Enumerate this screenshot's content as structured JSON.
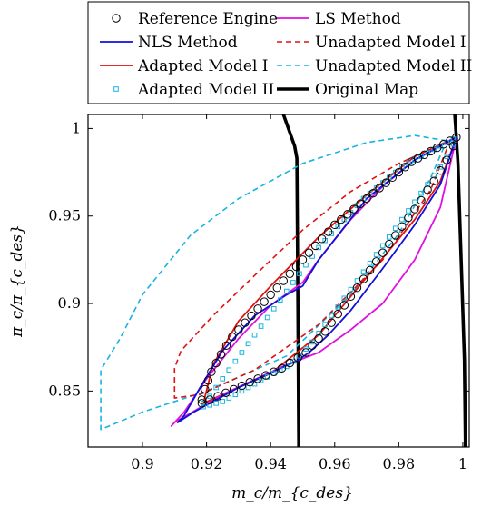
{
  "chart_data": {
    "type": "line",
    "xlabel": "m_c/m_{c_des}",
    "ylabel": "π_c/π_{c_des}",
    "xlim": [
      0.883,
      1.002
    ],
    "ylim": [
      0.818,
      1.008
    ],
    "xticks": [
      "0.9",
      "0.92",
      "0.94",
      "0.96",
      "0.98",
      "1"
    ],
    "yticks": [
      "0.85",
      "0.9",
      "0.95",
      "1"
    ],
    "grid": false,
    "legend_position": "top (above plot)",
    "series": [
      {
        "name": "Reference Engine",
        "style": "markers-circle",
        "color": "#000000",
        "x": [
          0.9185,
          0.9195,
          0.9205,
          0.9215,
          0.923,
          0.9245,
          0.9262,
          0.928,
          0.93,
          0.932,
          0.934,
          0.936,
          0.938,
          0.94,
          0.942,
          0.944,
          0.946,
          0.948,
          0.95,
          0.952,
          0.954,
          0.956,
          0.958,
          0.96,
          0.962,
          0.964,
          0.966,
          0.968,
          0.97,
          0.972,
          0.974,
          0.976,
          0.978,
          0.98,
          0.982,
          0.984,
          0.986,
          0.988,
          0.99,
          0.992,
          0.994,
          0.996,
          0.998,
          0.9185,
          0.921,
          0.9235,
          0.926,
          0.9285,
          0.931,
          0.9335,
          0.936,
          0.9385,
          0.941,
          0.9435,
          0.946,
          0.9485,
          0.951,
          0.953,
          0.955,
          0.957,
          0.959,
          0.961,
          0.963,
          0.965,
          0.967,
          0.969,
          0.971,
          0.973,
          0.975,
          0.977,
          0.979,
          0.981,
          0.983,
          0.985,
          0.987,
          0.989,
          0.991,
          0.993,
          0.995,
          0.997
        ],
        "y": [
          0.845,
          0.851,
          0.856,
          0.861,
          0.866,
          0.871,
          0.876,
          0.881,
          0.885,
          0.889,
          0.893,
          0.897,
          0.901,
          0.905,
          0.909,
          0.913,
          0.917,
          0.921,
          0.925,
          0.929,
          0.933,
          0.937,
          0.941,
          0.945,
          0.948,
          0.951,
          0.954,
          0.957,
          0.96,
          0.963,
          0.966,
          0.969,
          0.972,
          0.975,
          0.978,
          0.981,
          0.983,
          0.985,
          0.987,
          0.989,
          0.991,
          0.993,
          0.995,
          0.843,
          0.845,
          0.847,
          0.849,
          0.851,
          0.853,
          0.855,
          0.857,
          0.859,
          0.861,
          0.863,
          0.866,
          0.869,
          0.872,
          0.876,
          0.88,
          0.884,
          0.889,
          0.894,
          0.899,
          0.904,
          0.909,
          0.914,
          0.919,
          0.924,
          0.929,
          0.934,
          0.939,
          0.944,
          0.949,
          0.954,
          0.959,
          0.965,
          0.97,
          0.976,
          0.982,
          0.99
        ]
      },
      {
        "name": "NLS Method",
        "style": "solid",
        "color": "#1010d8",
        "x": [
          0.998,
          0.985,
          0.97,
          0.955,
          0.95,
          0.945,
          0.935,
          0.925,
          0.918,
          0.913,
          0.911,
          0.916,
          0.93,
          0.948,
          0.952,
          0.958,
          0.965,
          0.975,
          0.985,
          0.993,
          0.998
        ],
        "y": [
          0.995,
          0.982,
          0.96,
          0.925,
          0.91,
          0.905,
          0.893,
          0.873,
          0.852,
          0.836,
          0.832,
          0.838,
          0.852,
          0.867,
          0.872,
          0.882,
          0.896,
          0.92,
          0.945,
          0.968,
          0.995
        ]
      },
      {
        "name": "Adapted Model I",
        "style": "solid",
        "color": "#e01010",
        "x": [
          0.998,
          0.985,
          0.97,
          0.955,
          0.94,
          0.93,
          0.922,
          0.919,
          0.925,
          0.94,
          0.955,
          0.97,
          0.985,
          0.993,
          0.998
        ],
        "y": [
          0.995,
          0.984,
          0.962,
          0.938,
          0.91,
          0.89,
          0.865,
          0.843,
          0.848,
          0.86,
          0.882,
          0.915,
          0.948,
          0.97,
          0.995
        ]
      },
      {
        "name": "Adapted Model II",
        "style": "markers-square",
        "color": "#18b4e0",
        "x": [
          0.919,
          0.921,
          0.923,
          0.925,
          0.927,
          0.929,
          0.931,
          0.933,
          0.935,
          0.937,
          0.939,
          0.941,
          0.943,
          0.945,
          0.947,
          0.949,
          0.951,
          0.953,
          0.955,
          0.957,
          0.959,
          0.961,
          0.963,
          0.965,
          0.967,
          0.969,
          0.971,
          0.973,
          0.975,
          0.977,
          0.979,
          0.981,
          0.983,
          0.985,
          0.987,
          0.989,
          0.991,
          0.993,
          0.995,
          0.997,
          0.919,
          0.921,
          0.923,
          0.925,
          0.927,
          0.929,
          0.931,
          0.933,
          0.935,
          0.937,
          0.939,
          0.941,
          0.943,
          0.945,
          0.947,
          0.949,
          0.951,
          0.953,
          0.955,
          0.957,
          0.959,
          0.961,
          0.963,
          0.965,
          0.967,
          0.969,
          0.971,
          0.973,
          0.975,
          0.977,
          0.979,
          0.981,
          0.983,
          0.985,
          0.987,
          0.989,
          0.991,
          0.993,
          0.995,
          0.997
        ],
        "y": [
          0.843,
          0.847,
          0.852,
          0.857,
          0.862,
          0.867,
          0.872,
          0.877,
          0.882,
          0.887,
          0.892,
          0.897,
          0.902,
          0.907,
          0.912,
          0.917,
          0.922,
          0.927,
          0.932,
          0.936,
          0.94,
          0.944,
          0.948,
          0.952,
          0.956,
          0.96,
          0.963,
          0.966,
          0.969,
          0.972,
          0.975,
          0.978,
          0.98,
          0.982,
          0.984,
          0.986,
          0.988,
          0.99,
          0.992,
          0.994,
          0.841,
          0.842,
          0.843,
          0.844,
          0.846,
          0.848,
          0.85,
          0.852,
          0.854,
          0.856,
          0.858,
          0.86,
          0.862,
          0.864,
          0.867,
          0.87,
          0.874,
          0.878,
          0.883,
          0.888,
          0.893,
          0.898,
          0.903,
          0.908,
          0.913,
          0.918,
          0.923,
          0.928,
          0.933,
          0.938,
          0.943,
          0.948,
          0.953,
          0.958,
          0.963,
          0.968,
          0.973,
          0.978,
          0.984,
          0.991
        ]
      },
      {
        "name": "LS Method",
        "style": "solid",
        "color": "#e010e0",
        "x": [
          0.998,
          0.985,
          0.975,
          0.965,
          0.955,
          0.95,
          0.94,
          0.93,
          0.92,
          0.913,
          0.909,
          0.91,
          0.925,
          0.945,
          0.955,
          0.965,
          0.975,
          0.985,
          0.993,
          0.998
        ],
        "y": [
          0.995,
          0.982,
          0.967,
          0.948,
          0.925,
          0.912,
          0.899,
          0.88,
          0.857,
          0.838,
          0.83,
          0.832,
          0.848,
          0.865,
          0.872,
          0.885,
          0.9,
          0.925,
          0.955,
          0.995
        ]
      },
      {
        "name": "Unadapted Model I",
        "style": "dashed",
        "color": "#e01010",
        "x": [
          0.996,
          0.98,
          0.965,
          0.95,
          0.935,
          0.922,
          0.912,
          0.91,
          0.91,
          0.918,
          0.935,
          0.955,
          0.975,
          0.99,
          0.996
        ],
        "y": [
          0.993,
          0.98,
          0.964,
          0.942,
          0.916,
          0.893,
          0.873,
          0.863,
          0.846,
          0.848,
          0.862,
          0.888,
          0.925,
          0.965,
          0.993
        ]
      },
      {
        "name": "Unadapted Model II",
        "style": "dashed",
        "color": "#18b4e0",
        "x": [
          0.995,
          0.985,
          0.97,
          0.95,
          0.93,
          0.915,
          0.9,
          0.893,
          0.887,
          0.887,
          0.9,
          0.92,
          0.945,
          0.965,
          0.98,
          0.99,
          0.995
        ],
        "y": [
          0.993,
          0.996,
          0.992,
          0.98,
          0.96,
          0.939,
          0.905,
          0.88,
          0.862,
          0.828,
          0.838,
          0.85,
          0.87,
          0.905,
          0.94,
          0.972,
          0.993
        ]
      },
      {
        "name": "Original Map",
        "style": "thick-solid",
        "color": "#000000",
        "lines": [
          {
            "x": [
              0.944,
              0.9475,
              0.9482,
              0.9485,
              0.9488
            ],
            "y": [
              1.008,
              0.99,
              0.983,
              0.9,
              0.818
            ]
          },
          {
            "x": [
              0.9975,
              0.9985,
              1.0005,
              1.0008
            ],
            "y": [
              1.008,
              0.98,
              0.868,
              0.818
            ]
          }
        ]
      }
    ]
  }
}
